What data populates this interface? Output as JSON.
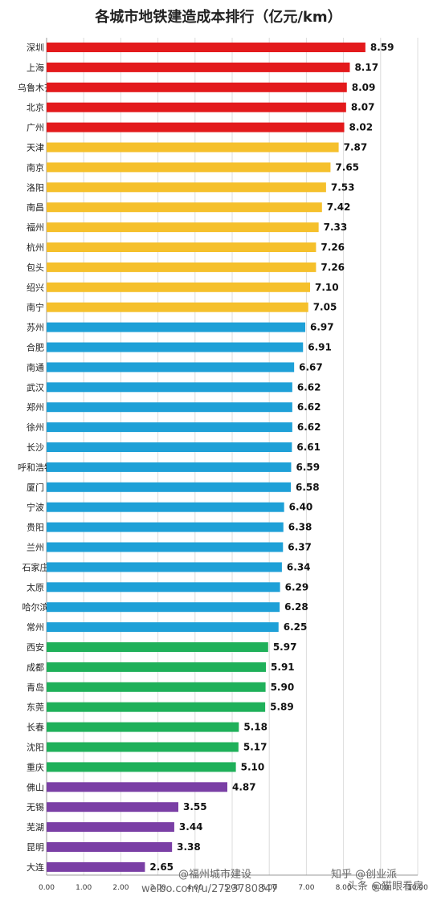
{
  "chart_data": {
    "type": "bar",
    "orientation": "horizontal",
    "title": "各城市地铁建造成本排行（亿元/km）",
    "categories": [
      "深圳",
      "上海",
      "乌鲁木齐",
      "北京",
      "广州",
      "天津",
      "南京",
      "洛阳",
      "南昌",
      "福州",
      "杭州",
      "包头",
      "绍兴",
      "南宁",
      "苏州",
      "合肥",
      "南通",
      "武汉",
      "郑州",
      "徐州",
      "长沙",
      "呼和浩特",
      "厦门",
      "宁波",
      "贵阳",
      "兰州",
      "石家庄",
      "太原",
      "哈尔滨",
      "常州",
      "西安",
      "成都",
      "青岛",
      "东莞",
      "长春",
      "沈阳",
      "重庆",
      "佛山",
      "无锡",
      "芜湖",
      "昆明",
      "大连"
    ],
    "values": [
      8.59,
      8.17,
      8.09,
      8.07,
      8.02,
      7.87,
      7.65,
      7.53,
      7.42,
      7.33,
      7.26,
      7.26,
      7.1,
      7.05,
      6.97,
      6.91,
      6.67,
      6.62,
      6.62,
      6.62,
      6.61,
      6.59,
      6.58,
      6.4,
      6.38,
      6.37,
      6.34,
      6.29,
      6.28,
      6.25,
      5.97,
      5.91,
      5.9,
      5.89,
      5.18,
      5.17,
      5.1,
      4.87,
      3.55,
      3.44,
      3.38,
      2.65
    ],
    "value_labels": [
      "8.59",
      "8.17",
      "8.09",
      "8.07",
      "8.02",
      "7.87",
      "7.65",
      "7.53",
      "7.42",
      "7.33",
      "7.26",
      "7.26",
      "7.10",
      "7.05",
      "6.97",
      "6.91",
      "6.67",
      "6.62",
      "6.62",
      "6.62",
      "6.61",
      "6.59",
      "6.58",
      "6.40",
      "6.38",
      "6.37",
      "6.34",
      "6.29",
      "6.28",
      "6.25",
      "5.97",
      "5.91",
      "5.90",
      "5.89",
      "5.18",
      "5.17",
      "5.10",
      "4.87",
      "3.55",
      "3.44",
      "3.38",
      "2.65"
    ],
    "groups": [
      {
        "color": "#e31a1c",
        "count": 5
      },
      {
        "color": "#f5c02c",
        "count": 9
      },
      {
        "color": "#1ea0d7",
        "count": 16
      },
      {
        "color": "#1fb05a",
        "count": 7
      },
      {
        "color": "#7a3fa5",
        "count": 5
      }
    ],
    "xlim": [
      0,
      10
    ],
    "xticks": [
      "0.00",
      "1.00",
      "2.00",
      "3.00",
      "4.00",
      "5.00",
      "6.00",
      "7.00",
      "8.00",
      "9.00",
      "10.00"
    ],
    "grid": true
  },
  "watermarks": {
    "line1": "@福州城市建设",
    "line2": "weibo.com/u/2723780847",
    "line3": "知乎 @创业派",
    "line4": "头条 @猫眼看房"
  }
}
